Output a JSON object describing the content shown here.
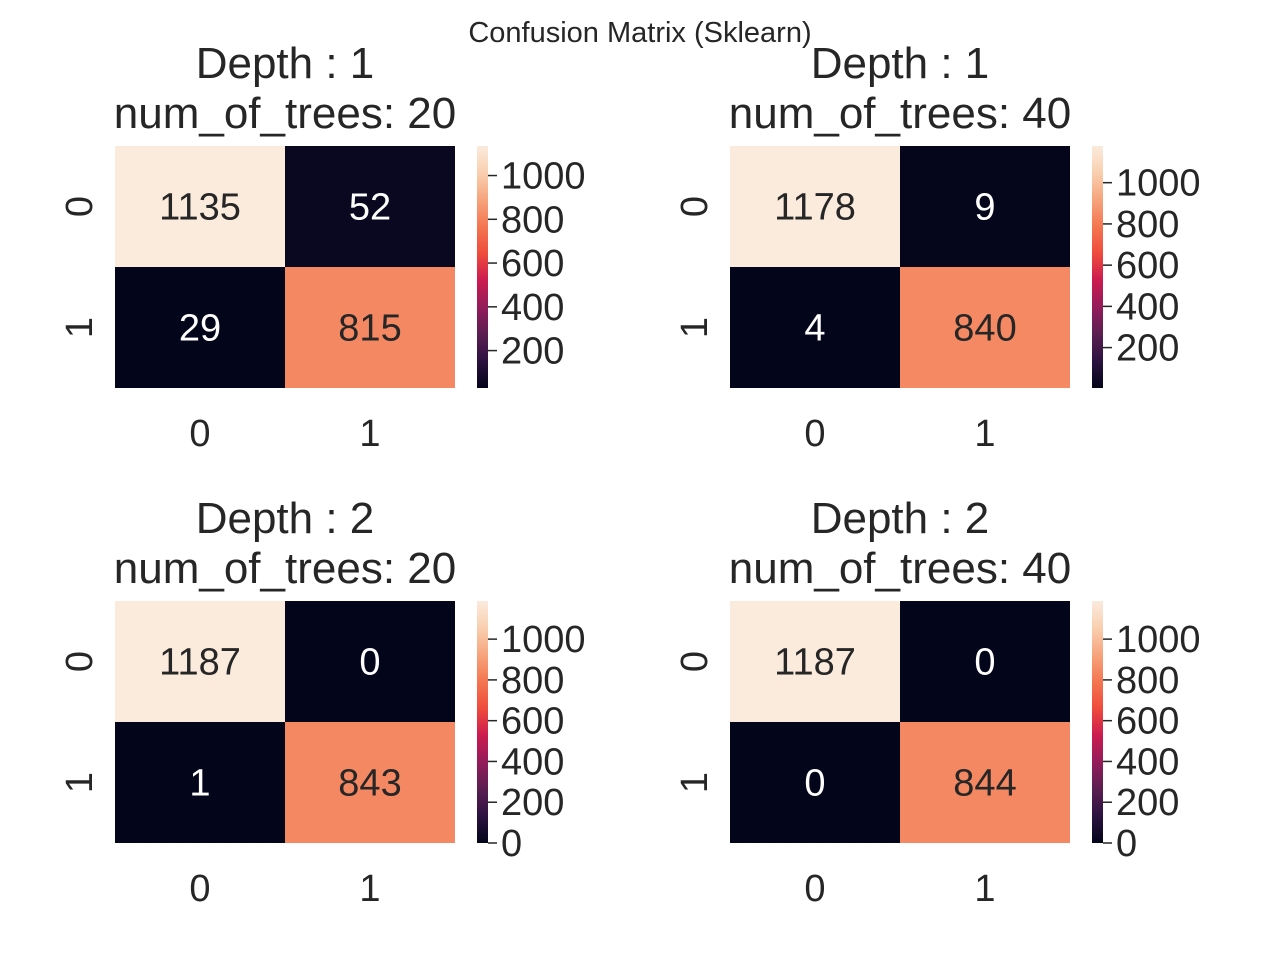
{
  "figure": {
    "suptitle": "Confusion Matrix (Sklearn)"
  },
  "colormap": {
    "name": "rocket",
    "stops": [
      "#03051a",
      "#2b123f",
      "#5b1e51",
      "#921c5b",
      "#cb1b4f",
      "#ef4b3c",
      "#f37651",
      "#f6a47c",
      "#f9cfb0",
      "#faebdd"
    ]
  },
  "chart_data": [
    {
      "type": "heatmap",
      "title": "Depth : 1\nnum_of_trees: 20",
      "x_tick_labels": [
        "0",
        "1"
      ],
      "y_tick_labels": [
        "0",
        "1"
      ],
      "values": [
        [
          1135,
          52
        ],
        [
          29,
          815
        ]
      ],
      "colorbar": {
        "vmin": 29,
        "vmax": 1135,
        "ticks": [
          200,
          400,
          600,
          800,
          1000
        ]
      }
    },
    {
      "type": "heatmap",
      "title": "Depth : 1\nnum_of_trees: 40",
      "x_tick_labels": [
        "0",
        "1"
      ],
      "y_tick_labels": [
        "0",
        "1"
      ],
      "values": [
        [
          1178,
          9
        ],
        [
          4,
          840
        ]
      ],
      "colorbar": {
        "vmin": 4,
        "vmax": 1178,
        "ticks": [
          200,
          400,
          600,
          800,
          1000
        ]
      }
    },
    {
      "type": "heatmap",
      "title": "Depth : 2\nnum_of_trees: 20",
      "x_tick_labels": [
        "0",
        "1"
      ],
      "y_tick_labels": [
        "0",
        "1"
      ],
      "values": [
        [
          1187,
          0
        ],
        [
          1,
          843
        ]
      ],
      "colorbar": {
        "vmin": 0,
        "vmax": 1187,
        "ticks": [
          0,
          200,
          400,
          600,
          800,
          1000
        ]
      }
    },
    {
      "type": "heatmap",
      "title": "Depth : 2\nnum_of_trees: 40",
      "x_tick_labels": [
        "0",
        "1"
      ],
      "y_tick_labels": [
        "0",
        "1"
      ],
      "values": [
        [
          1187,
          0
        ],
        [
          0,
          844
        ]
      ],
      "colorbar": {
        "vmin": 0,
        "vmax": 1187,
        "ticks": [
          0,
          200,
          400,
          600,
          800,
          1000
        ]
      }
    }
  ]
}
